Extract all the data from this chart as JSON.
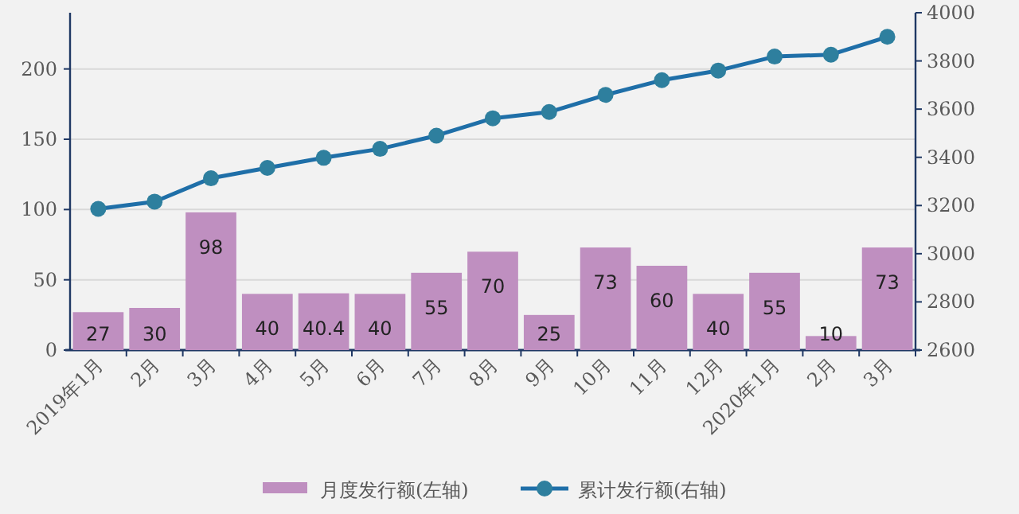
{
  "chart_data": {
    "type": "bar",
    "categories": [
      "2019年1月",
      "2月",
      "3月",
      "4月",
      "5月",
      "6月",
      "7月",
      "8月",
      "9月",
      "10月",
      "11月",
      "12月",
      "2020年1月",
      "2月",
      "3月"
    ],
    "series": [
      {
        "name": "月度发行额(左轴)",
        "color": "#bf8fc0",
        "values": [
          27,
          30,
          98,
          40,
          40.4,
          40,
          55,
          70,
          25,
          73,
          60,
          40,
          55,
          10,
          73
        ],
        "value_labels": [
          "27",
          "30",
          "98",
          "40",
          "40.4",
          "40",
          "55",
          "70",
          "25",
          "73",
          "60",
          "40",
          "55",
          "10",
          "73"
        ]
      },
      {
        "name": "累计发行额(右轴)",
        "type": "line",
        "axis": "y2",
        "color": "#1f6fa8",
        "values": [
          3186,
          3216,
          3313,
          3356,
          3398,
          3435,
          3490,
          3562,
          3588,
          3659,
          3720,
          3760,
          3818,
          3826,
          3900
        ]
      }
    ],
    "ylim": [
      0,
      240
    ],
    "yticks": [
      0,
      50,
      100,
      150,
      200
    ],
    "y2lim": [
      2600,
      4000
    ],
    "y2ticks": [
      2600,
      2800,
      3000,
      3200,
      3400,
      3600,
      3800,
      4000
    ],
    "grid": "y",
    "legend": "bottom",
    "marker": "circle"
  }
}
